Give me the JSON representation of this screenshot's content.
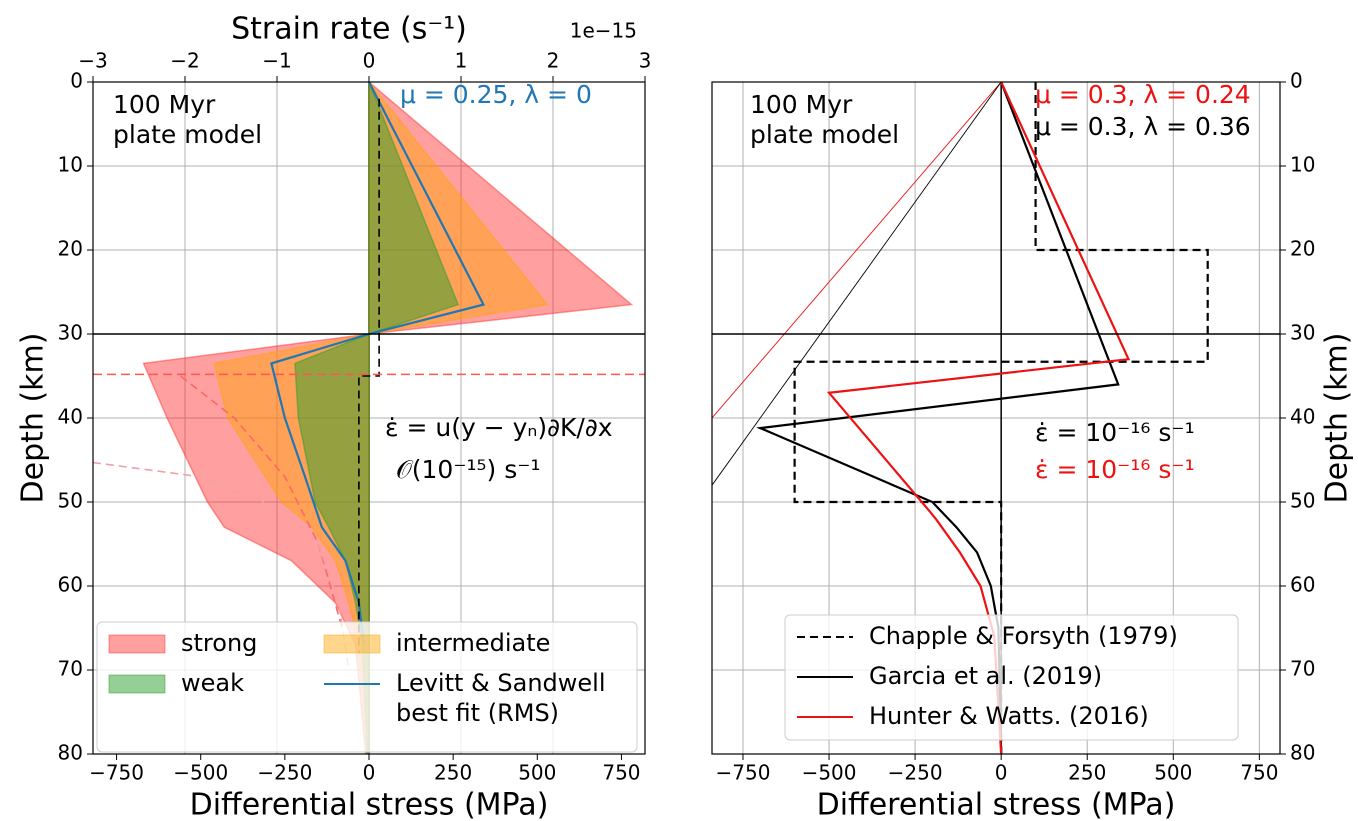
{
  "chart_data": [
    {
      "type": "line",
      "xlabel": "Differential stress (MPa)",
      "ylabel": "Depth (km)",
      "x2label": "Strain rate (s⁻¹)",
      "x2_offset_label": "1e−15",
      "xlim": [
        -820,
        820
      ],
      "xticks": [
        {
          "value": -750,
          "label": "−750"
        },
        {
          "value": -500,
          "label": "−500"
        },
        {
          "value": -250,
          "label": "−250"
        },
        0,
        250,
        500,
        750
      ],
      "x2lim": [
        -3,
        3
      ],
      "x2ticks": [
        {
          "value": -3,
          "label": "−3"
        },
        {
          "value": -2,
          "label": "−2"
        },
        {
          "value": -1,
          "label": "−1"
        },
        0,
        1,
        2,
        3
      ],
      "ylim": [
        80,
        0
      ],
      "yticks": [
        0,
        10,
        20,
        30,
        40,
        50,
        60,
        70,
        80
      ],
      "grid": true,
      "grid_x_from": "x2",
      "yaxis_side": "left",
      "hlines": [
        {
          "y": 30,
          "color": "#000000",
          "style": "solid"
        },
        {
          "y": 34.8,
          "color": "#ff5555",
          "style": "dashed"
        }
      ],
      "series": [
        {
          "name": "strong",
          "style": "fill",
          "color": "#ff2a2a",
          "alpha": 0.45,
          "zorder": 1,
          "x": [
            0,
            780,
            0,
            -670,
            -600,
            -480,
            -430,
            -230,
            -100,
            -40,
            -10,
            0
          ],
          "values": [
            0,
            26.5,
            30,
            33.5,
            40,
            50,
            53,
            57,
            62,
            67,
            80,
            80
          ]
        },
        {
          "name": "weak",
          "style": "fill",
          "color": "#2ca02c",
          "alpha": 0.5,
          "zorder": 3,
          "x": [
            0,
            265,
            0,
            -220,
            -210,
            -160,
            -120,
            -70,
            -40,
            -20,
            -5,
            0
          ],
          "values": [
            0,
            26.5,
            30,
            33.5,
            40,
            50,
            53,
            57,
            62,
            67,
            80,
            80
          ]
        },
        {
          "name": "intermediate",
          "style": "fill",
          "color": "#ffa500",
          "alpha": 0.45,
          "zorder": 2,
          "x": [
            0,
            530,
            0,
            -460,
            -420,
            -260,
            -170,
            -100,
            -60,
            -30,
            -5,
            0
          ],
          "values": [
            0,
            26.5,
            30,
            33.5,
            40,
            50,
            53,
            57,
            62,
            67,
            80,
            80
          ]
        },
        {
          "name": "Levitt & Sandwell\n best fit (RMS)",
          "style": "solid",
          "color": "#1f77b4",
          "zorder": 5,
          "x": [
            0,
            340,
            0,
            -290,
            -250,
            -190,
            -140,
            -70,
            -30,
            -15
          ],
          "values": [
            0,
            26.5,
            30,
            33.5,
            40,
            47,
            53,
            57,
            62,
            67
          ]
        },
        {
          "style": "dashed",
          "color": "#000000",
          "axis": "x2",
          "zorder": 6,
          "linewidth": 1.6,
          "x": [
            0.11,
            0.11,
            -0.11,
            -0.11
          ],
          "values": [
            2,
            35,
            35,
            68
          ]
        },
        {
          "style": "dashed",
          "color": "#ff6666",
          "zorder": 4,
          "linewidth": 1.6,
          "x": [
            -560,
            -400,
            -250,
            -150,
            -80
          ],
          "values": [
            35,
            40,
            47,
            55,
            65
          ]
        },
        {
          "style": "dashed",
          "color": "#f2a0a8",
          "zorder": 4,
          "linewidth": 1.6,
          "x": [
            -820,
            -500,
            -250,
            -150,
            -90,
            -60
          ],
          "values": [
            45.3,
            47,
            51,
            55,
            62,
            70
          ]
        }
      ],
      "legend": "lower left",
      "legend_columns": 2,
      "annotations": [
        {
          "text": "100 Myr\nplate model",
          "color": "#000000"
        },
        {
          "text": "μ = 0.25,  λ = 0",
          "color": "#1f77b4"
        },
        {
          "text": "ε̇ = u(y − yₙ)∂K/∂x",
          "color": "#000000"
        },
        {
          "text": "𝒪(10⁻¹⁵) s⁻¹",
          "color": "#000000"
        }
      ]
    },
    {
      "type": "line",
      "xlabel": "Differential stress (MPa)",
      "ylabel": "Depth (km)",
      "xlim": [
        -840,
        810
      ],
      "xticks": [
        {
          "value": -750,
          "label": "−750"
        },
        {
          "value": -500,
          "label": "−500"
        },
        {
          "value": -250,
          "label": "−250"
        },
        0,
        250,
        500,
        750
      ],
      "ylim": [
        80,
        0
      ],
      "yticks": [
        0,
        10,
        20,
        30,
        40,
        50,
        60,
        70,
        80
      ],
      "grid": true,
      "grid_x_from": "x",
      "yaxis_side": "right",
      "hlines": [
        {
          "y": 30,
          "color": "#000000",
          "style": "solid"
        }
      ],
      "series": [
        {
          "name": "Chapple & Forsyth (1979)",
          "style": "dashed",
          "color": "#000000",
          "zorder": 3,
          "x": [
            100,
            100,
            600,
            600,
            -600,
            -600,
            0,
            0
          ],
          "values": [
            0,
            20,
            20,
            33.3,
            33.3,
            50,
            50,
            80
          ]
        },
        {
          "name": "Garcia et al. (2019)",
          "style": "solid",
          "color": "#000000",
          "zorder": 4,
          "x": [
            0,
            340,
            -700,
            -200,
            -130,
            -70,
            -30,
            -8,
            0
          ],
          "values": [
            0,
            36,
            41.2,
            50,
            53,
            56,
            60,
            65,
            80
          ]
        },
        {
          "name": "Hunter & Watts. (2016)",
          "style": "solid",
          "color": "#ee1111",
          "zorder": 5,
          "x": [
            0,
            370,
            -500,
            -210,
            -190,
            -120,
            -60,
            -20,
            0
          ],
          "values": [
            0,
            33,
            37,
            51,
            52,
            56,
            60,
            66,
            80
          ]
        },
        {
          "style": "solid",
          "color": "#ee1111",
          "zorder": 1,
          "linewidth": 0.9,
          "x": [
            0,
            -840
          ],
          "values": [
            0,
            40
          ]
        },
        {
          "style": "solid",
          "color": "#000000",
          "zorder": 1,
          "linewidth": 0.9,
          "x": [
            0,
            -840
          ],
          "values": [
            0,
            48
          ]
        }
      ],
      "legend": "lower center",
      "legend_columns": 1,
      "annotations": [
        {
          "text": "100 Myr\nplate model",
          "color": "#000000"
        },
        {
          "text": "μ = 0.3,  λ = 0.24",
          "color": "#ee1111"
        },
        {
          "text": "μ = 0.3,  λ = 0.36",
          "color": "#000000"
        },
        {
          "text": "ε̇ =   10⁻¹⁶ s⁻¹",
          "color": "#000000"
        },
        {
          "text": "ε̇ =   10⁻¹⁶ s⁻¹",
          "color": "#ee1111"
        }
      ]
    }
  ]
}
